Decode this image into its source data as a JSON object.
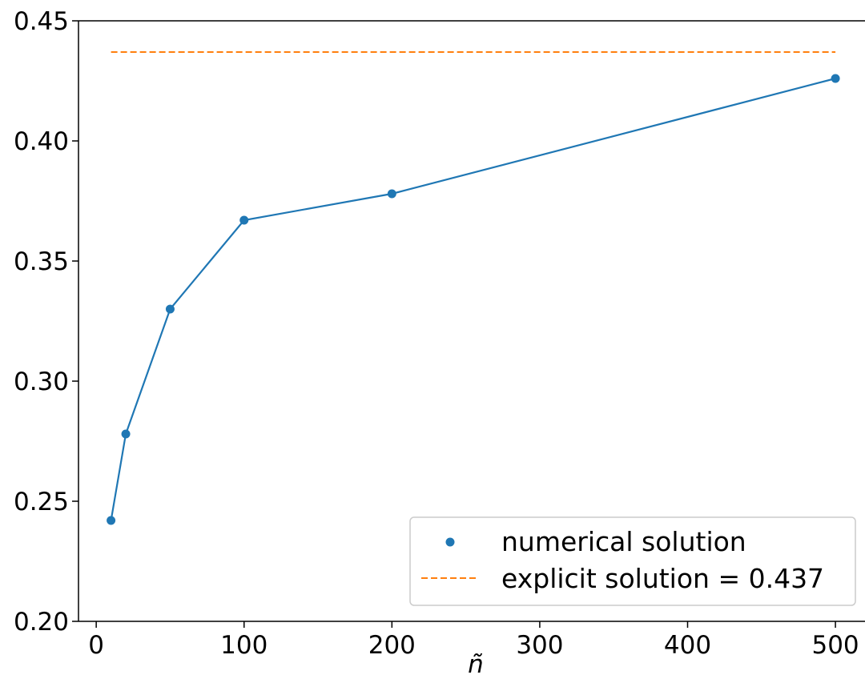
{
  "chart_data": {
    "type": "line",
    "title": "",
    "xlabel": "ñ",
    "ylabel": "",
    "xlim": [
      -12,
      520
    ],
    "ylim": [
      0.2,
      0.45
    ],
    "x_ticks": [
      0,
      100,
      200,
      300,
      400,
      500
    ],
    "x_tick_labels": [
      "0",
      "100",
      "200",
      "300",
      "400",
      "500"
    ],
    "y_ticks": [
      0.2,
      0.25,
      0.3,
      0.35,
      0.4,
      0.45
    ],
    "y_tick_labels": [
      "0.20",
      "0.25",
      "0.30",
      "0.35",
      "0.40",
      "0.45"
    ],
    "grid": false,
    "legend_position": "lower-right",
    "series": [
      {
        "name": "numerical solution",
        "style": "line-with-markers",
        "color": "#1f77b4",
        "x": [
          10,
          20,
          50,
          100,
          200,
          500
        ],
        "y": [
          0.242,
          0.278,
          0.33,
          0.367,
          0.378,
          0.426
        ]
      },
      {
        "name": "explicit solution = 0.437",
        "style": "dashed",
        "color": "#ff7f0e",
        "x": [
          10,
          500
        ],
        "y": [
          0.437,
          0.437
        ]
      }
    ]
  }
}
